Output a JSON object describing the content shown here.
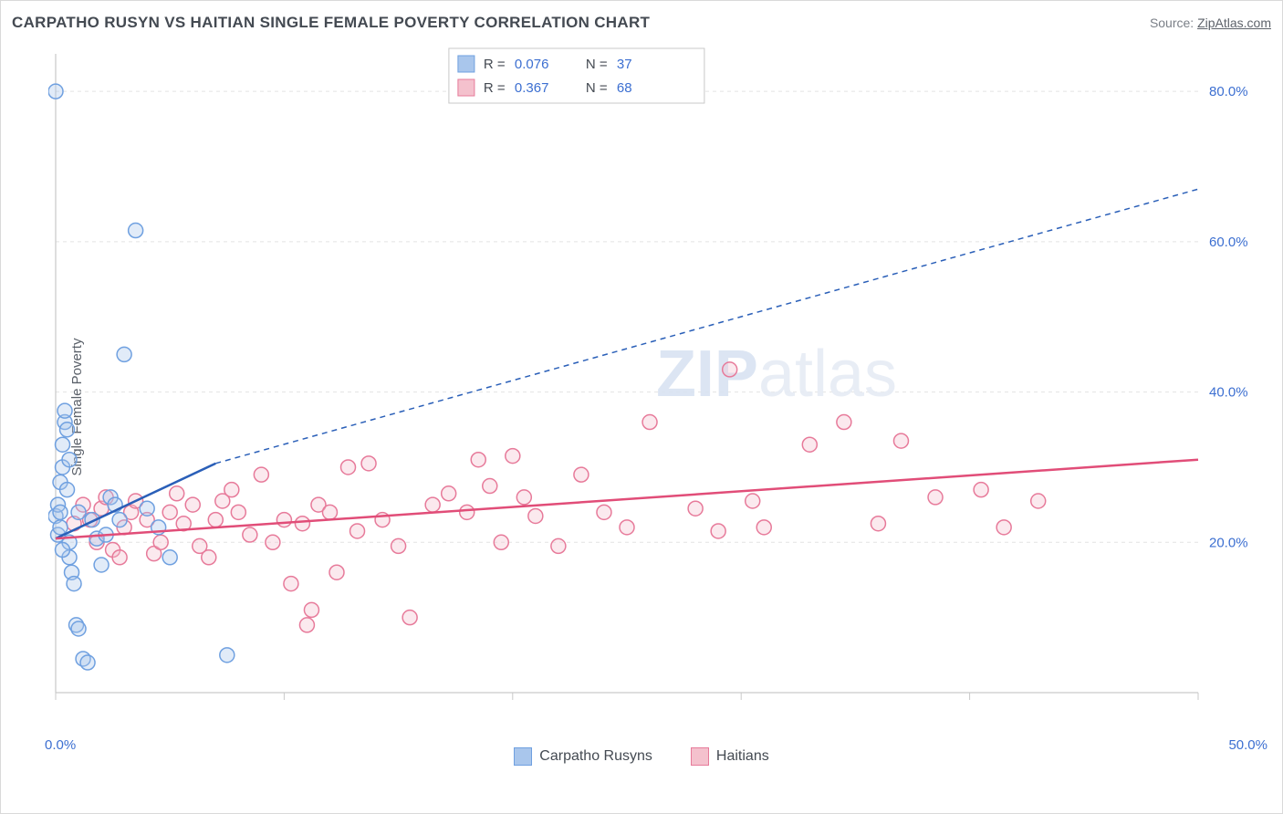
{
  "title": "CARPATHO RUSYN VS HAITIAN SINGLE FEMALE POVERTY CORRELATION CHART",
  "source_label": "Source: ",
  "source_site": "ZipAtlas.com",
  "y_axis_title": "Single Female Poverty",
  "watermark": "ZIPatlas",
  "chart": {
    "type": "scatter",
    "xlim": [
      0,
      50
    ],
    "ylim": [
      0,
      85
    ],
    "x_ticks": [
      0,
      10,
      20,
      30,
      40,
      50
    ],
    "x_tick_labels_shown": {
      "start": "0.0%",
      "end": "50.0%"
    },
    "y_grid": [
      20,
      40,
      60,
      80
    ],
    "y_tick_labels": [
      "20.0%",
      "40.0%",
      "60.0%",
      "80.0%"
    ],
    "background_color": "#ffffff",
    "grid_color": "#e4e4e4",
    "axis_color": "#c9c9c9",
    "tick_label_color": "#3c6fd1",
    "marker_radius": 8,
    "marker_fill_opacity": 0.35,
    "series": [
      {
        "name": "Carpatho Rusyns",
        "color_fill": "#a9c6ec",
        "color_stroke": "#6fa0e0",
        "R": "0.076",
        "N": "37",
        "trend": {
          "x1": 0,
          "y1": 20.5,
          "x2": 7,
          "y2": 30.5,
          "color": "#2a5fb8",
          "dash_to_x": 50,
          "dash_to_y": 67
        },
        "points": [
          [
            0.0,
            80.0
          ],
          [
            0.0,
            23.5
          ],
          [
            0.1,
            21.0
          ],
          [
            0.1,
            25.0
          ],
          [
            0.2,
            24.0
          ],
          [
            0.2,
            22.0
          ],
          [
            0.2,
            28.0
          ],
          [
            0.3,
            30.0
          ],
          [
            0.3,
            33.0
          ],
          [
            0.4,
            36.0
          ],
          [
            0.4,
            37.5
          ],
          [
            0.5,
            35.0
          ],
          [
            0.6,
            18.0
          ],
          [
            0.6,
            20.0
          ],
          [
            0.7,
            16.0
          ],
          [
            0.8,
            14.5
          ],
          [
            0.9,
            9.0
          ],
          [
            1.0,
            24.0
          ],
          [
            1.0,
            8.5
          ],
          [
            1.2,
            4.5
          ],
          [
            1.4,
            4.0
          ],
          [
            1.6,
            23.0
          ],
          [
            1.8,
            20.5
          ],
          [
            2.0,
            17.0
          ],
          [
            2.2,
            21.0
          ],
          [
            2.4,
            26.0
          ],
          [
            2.6,
            25.0
          ],
          [
            2.8,
            23.0
          ],
          [
            3.0,
            45.0
          ],
          [
            3.5,
            61.5
          ],
          [
            4.0,
            24.5
          ],
          [
            4.5,
            22.0
          ],
          [
            5.0,
            18.0
          ],
          [
            0.5,
            27.0
          ],
          [
            0.6,
            31.0
          ],
          [
            7.5,
            5.0
          ],
          [
            0.3,
            19.0
          ]
        ]
      },
      {
        "name": "Haitians",
        "color_fill": "#f4c1cd",
        "color_stroke": "#e77a9a",
        "R": "0.367",
        "N": "68",
        "trend": {
          "x1": 0,
          "y1": 20.5,
          "x2": 50,
          "y2": 31.0,
          "color": "#e14d78"
        },
        "points": [
          [
            0.8,
            22.5
          ],
          [
            1.2,
            25.0
          ],
          [
            1.5,
            23.0
          ],
          [
            1.8,
            20.0
          ],
          [
            2.0,
            24.5
          ],
          [
            2.2,
            26.0
          ],
          [
            2.5,
            19.0
          ],
          [
            2.8,
            18.0
          ],
          [
            3.0,
            22.0
          ],
          [
            3.3,
            24.0
          ],
          [
            3.5,
            25.5
          ],
          [
            4.0,
            23.0
          ],
          [
            4.3,
            18.5
          ],
          [
            4.6,
            20.0
          ],
          [
            5.0,
            24.0
          ],
          [
            5.3,
            26.5
          ],
          [
            5.6,
            22.5
          ],
          [
            6.0,
            25.0
          ],
          [
            6.3,
            19.5
          ],
          [
            6.7,
            18.0
          ],
          [
            7.0,
            23.0
          ],
          [
            7.3,
            25.5
          ],
          [
            7.7,
            27.0
          ],
          [
            8.0,
            24.0
          ],
          [
            8.5,
            21.0
          ],
          [
            9.0,
            29.0
          ],
          [
            9.5,
            20.0
          ],
          [
            10.0,
            23.0
          ],
          [
            10.3,
            14.5
          ],
          [
            10.8,
            22.5
          ],
          [
            11.2,
            11.0
          ],
          [
            11.5,
            25.0
          ],
          [
            12.0,
            24.0
          ],
          [
            12.3,
            16.0
          ],
          [
            12.8,
            30.0
          ],
          [
            13.2,
            21.5
          ],
          [
            13.7,
            30.5
          ],
          [
            14.3,
            23.0
          ],
          [
            15.0,
            19.5
          ],
          [
            15.5,
            10.0
          ],
          [
            16.5,
            25.0
          ],
          [
            17.2,
            26.5
          ],
          [
            18.0,
            24.0
          ],
          [
            18.5,
            31.0
          ],
          [
            19.0,
            27.5
          ],
          [
            19.5,
            20.0
          ],
          [
            20.0,
            31.5
          ],
          [
            20.5,
            26.0
          ],
          [
            21.0,
            23.5
          ],
          [
            22.0,
            19.5
          ],
          [
            23.0,
            29.0
          ],
          [
            24.0,
            24.0
          ],
          [
            25.0,
            22.0
          ],
          [
            26.0,
            36.0
          ],
          [
            28.0,
            24.5
          ],
          [
            29.0,
            21.5
          ],
          [
            29.5,
            43.0
          ],
          [
            30.5,
            25.5
          ],
          [
            31.0,
            22.0
          ],
          [
            33.0,
            33.0
          ],
          [
            34.5,
            36.0
          ],
          [
            36.0,
            22.5
          ],
          [
            37.0,
            33.5
          ],
          [
            38.5,
            26.0
          ],
          [
            40.5,
            27.0
          ],
          [
            41.5,
            22.0
          ],
          [
            43.0,
            25.5
          ],
          [
            11.0,
            9.0
          ]
        ]
      }
    ]
  },
  "top_legend": {
    "rows": [
      {
        "swatch_fill": "#a9c6ec",
        "swatch_stroke": "#6fa0e0",
        "r_label": "R = ",
        "r_val": "0.076",
        "n_label": "N = ",
        "n_val": "37"
      },
      {
        "swatch_fill": "#f4c1cd",
        "swatch_stroke": "#e77a9a",
        "r_label": "R = ",
        "r_val": "0.367",
        "n_label": "N = ",
        "n_val": "68"
      }
    ]
  },
  "bottom_legend": [
    {
      "fill": "#a9c6ec",
      "stroke": "#6fa0e0",
      "label": "Carpatho Rusyns"
    },
    {
      "fill": "#f4c1cd",
      "stroke": "#e77a9a",
      "label": "Haitians"
    }
  ]
}
